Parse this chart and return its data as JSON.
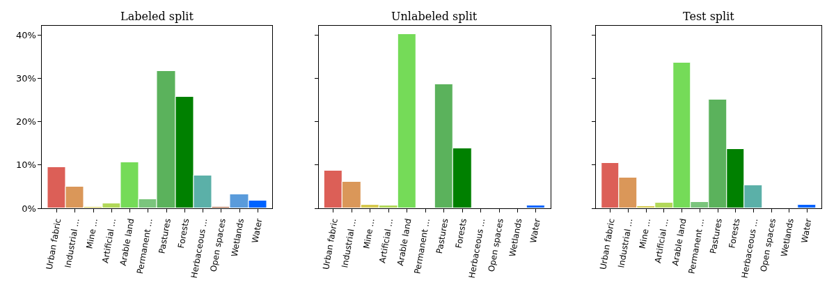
{
  "chart_data": [
    {
      "type": "bar",
      "title": "Labeled split",
      "categories": [
        "Urban fabric",
        "Industrial ...",
        "Mine ...",
        "Artificial ...",
        "Arable land",
        "Permanent ...",
        "Pastures",
        "Forests",
        "Herbaceous ...",
        "Open spaces",
        "Wetlands",
        "Water"
      ],
      "values": [
        9.5,
        5.0,
        0.3,
        1.1,
        10.6,
        2.1,
        31.8,
        25.7,
        7.6,
        0.3,
        3.2,
        1.8
      ],
      "colors": [
        "#dc5f57",
        "#da9759",
        "#d6c94f",
        "#b2d85a",
        "#75db58",
        "#7bc57d",
        "#5bb25c",
        "#008000",
        "#5bb0a8",
        "#a0522d",
        "#5a9bdb",
        "#0063ff"
      ],
      "ylim": [
        0,
        42.2
      ],
      "yticks": [
        {
          "value": 0,
          "label": "0%"
        },
        {
          "value": 10,
          "label": "10%"
        },
        {
          "value": 20,
          "label": "20%"
        },
        {
          "value": 30,
          "label": "30%"
        },
        {
          "value": 40,
          "label": "40%"
        }
      ]
    },
    {
      "type": "bar",
      "title": "Unlabeled split",
      "categories": [
        "Urban fabric",
        "Industrial ...",
        "Mine ...",
        "Artificial ...",
        "Arable land",
        "Permanent ...",
        "Pastures",
        "Forests",
        "Herbaceous ...",
        "Open spaces",
        "Wetlands",
        "Water"
      ],
      "values": [
        8.7,
        6.1,
        0.8,
        0.6,
        40.2,
        0,
        28.6,
        13.8,
        0,
        0,
        0,
        0.6
      ],
      "colors": [
        "#dc5f57",
        "#da9759",
        "#d6c94f",
        "#b2d85a",
        "#75db58",
        null,
        "#5bb25c",
        "#008000",
        null,
        null,
        null,
        "#0063ff"
      ],
      "ylim": [
        0,
        42.2
      ],
      "yticks": [
        {
          "value": 0,
          "label": null
        },
        {
          "value": 10,
          "label": null
        },
        {
          "value": 20,
          "label": null
        },
        {
          "value": 30,
          "label": null
        },
        {
          "value": 40,
          "label": null
        }
      ],
      "tick_labels": "x"
    },
    {
      "type": "bar",
      "title": "Test split",
      "categories": [
        "Urban fabric",
        "Industrial ...",
        "Mine ...",
        "Artificial ...",
        "Arable land",
        "Permanent ...",
        "Pastures",
        "Forests",
        "Herbaceous ...",
        "Open spaces",
        "Wetlands",
        "Water"
      ],
      "values": [
        10.4,
        7.1,
        0.5,
        1.3,
        33.6,
        1.4,
        25.2,
        13.7,
        5.3,
        0,
        0,
        0.8
      ],
      "colors": [
        "#dc5f57",
        "#da9759",
        "#d6c94f",
        "#b2d85a",
        "#75db58",
        "#7bc57d",
        "#5bb25c",
        "#008000",
        "#5bb0a8",
        null,
        null,
        "#0063ff"
      ],
      "ylim": [
        0,
        42.2
      ],
      "yticks": [
        {
          "value": 0,
          "label": null
        },
        {
          "value": 10,
          "label": null
        },
        {
          "value": 20,
          "label": null
        },
        {
          "value": 30,
          "label": null
        },
        {
          "value": 40,
          "label": null
        }
      ],
      "tick_labels": "x"
    }
  ]
}
